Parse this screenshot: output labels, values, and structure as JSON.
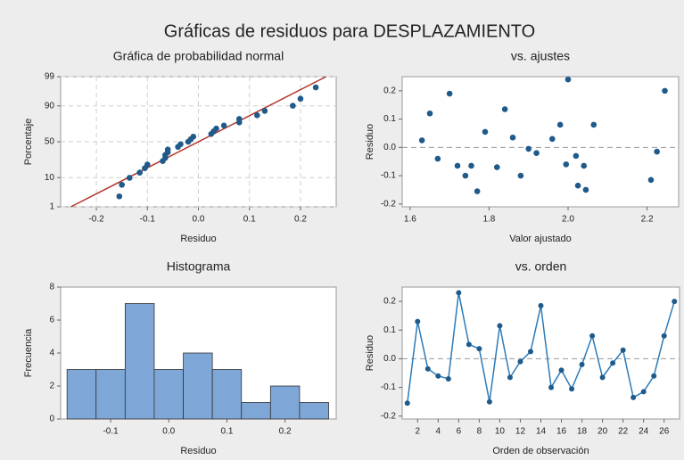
{
  "title": "Gráficas de residuos para DESPLAZAMIENTO",
  "chart_data": [
    {
      "type": "probability",
      "title": "Gráfica de probabilidad normal",
      "xlabel": "Residuo",
      "ylabel": "Porcentaje",
      "x": [
        -0.155,
        -0.15,
        -0.135,
        -0.115,
        -0.105,
        -0.1,
        -0.07,
        -0.065,
        -0.065,
        -0.06,
        -0.06,
        -0.04,
        -0.035,
        -0.02,
        -0.015,
        -0.01,
        0.025,
        0.03,
        0.035,
        0.05,
        0.08,
        0.08,
        0.115,
        0.13,
        0.185,
        0.2,
        0.23
      ],
      "values": [
        2.55,
        6.2,
        9.85,
        13.5,
        17.2,
        20.8,
        24.5,
        28.1,
        31.8,
        35.4,
        39.1,
        42.7,
        46.4,
        50,
        53.6,
        57.3,
        60.9,
        64.6,
        68.2,
        71.9,
        75.5,
        79.2,
        82.8,
        86.5,
        90.1,
        93.8,
        97.4
      ],
      "color": "#1f5a8a",
      "fit_line": {
        "x": [
          -0.25,
          0.25
        ],
        "y": [
          1,
          99
        ],
        "color": "#b0362b"
      },
      "xlim": [
        -0.27,
        0.27
      ],
      "xticks": [
        -0.2,
        -0.1,
        {
          "value": 0,
          "label": "0.0"
        },
        0.1,
        0.2
      ],
      "ylim": [
        1,
        99
      ],
      "yticks": [
        1,
        10,
        50,
        90,
        99
      ],
      "grid": true
    },
    {
      "type": "scatter",
      "title": "vs. ajustes",
      "xlabel": "Valor ajustado",
      "ylabel": "Residuo",
      "x": [
        1.63,
        1.65,
        1.67,
        1.7,
        1.72,
        1.74,
        1.755,
        1.77,
        1.79,
        1.82,
        1.84,
        1.86,
        1.88,
        1.9,
        1.92,
        1.96,
        1.98,
        1.995,
        2.0,
        2.02,
        2.025,
        2.04,
        2.045,
        2.065,
        2.21,
        2.225,
        2.245
      ],
      "values": [
        0.025,
        0.12,
        -0.04,
        0.19,
        -0.065,
        -0.1,
        -0.065,
        -0.155,
        0.055,
        -0.07,
        0.135,
        0.035,
        -0.1,
        -0.005,
        -0.02,
        0.03,
        0.08,
        -0.06,
        0.24,
        -0.03,
        -0.135,
        -0.065,
        -0.15,
        0.08,
        -0.115,
        -0.015,
        0.2
      ],
      "color": "#1f5a8a",
      "reference_line": 0,
      "xlim": [
        1.58,
        2.28
      ],
      "xticks": [
        1.6,
        1.8,
        {
          "value": 2,
          "label": "2.0"
        },
        2.2
      ],
      "ylim": [
        -0.21,
        0.25
      ],
      "yticks": [
        -0.2,
        -0.1,
        {
          "value": 0,
          "label": "0.0"
        },
        0.1,
        0.2
      ]
    },
    {
      "type": "histogram",
      "title": "Histograma",
      "xlabel": "Residuo",
      "ylabel": "Frecuencia",
      "bins": [
        -0.175,
        -0.125,
        -0.075,
        -0.025,
        0.025,
        0.075,
        0.125,
        0.175,
        0.225,
        0.275
      ],
      "values": [
        3,
        3,
        7,
        3,
        4,
        3,
        1,
        2,
        1
      ],
      "color": "#7ea7d8",
      "xlim": [
        -0.186,
        0.288
      ],
      "xticks": [
        -0.1,
        {
          "value": 0,
          "label": "0.0"
        },
        0.1,
        0.2
      ],
      "ylim": [
        0,
        8
      ],
      "yticks": [
        0,
        2,
        4,
        6,
        8
      ]
    },
    {
      "type": "line",
      "title": "vs. orden",
      "xlabel": "Orden de observación",
      "ylabel": "Residuo",
      "x": [
        1,
        2,
        3,
        4,
        5,
        6,
        7,
        8,
        9,
        10,
        11,
        12,
        13,
        14,
        15,
        16,
        17,
        18,
        19,
        20,
        21,
        22,
        23,
        24,
        25,
        26,
        27
      ],
      "values": [
        -0.155,
        0.13,
        -0.035,
        -0.06,
        -0.07,
        0.23,
        0.05,
        0.035,
        -0.15,
        0.115,
        -0.065,
        -0.01,
        0.025,
        0.185,
        -0.1,
        -0.04,
        -0.105,
        -0.02,
        0.08,
        -0.065,
        -0.015,
        0.03,
        -0.135,
        -0.115,
        -0.06,
        0.08,
        0.2
      ],
      "color": "#2b7bb9",
      "reference_line": 0,
      "xlim": [
        0.5,
        27.5
      ],
      "xticks": [
        2,
        4,
        6,
        8,
        10,
        12,
        14,
        16,
        18,
        20,
        22,
        24,
        26
      ],
      "ylim": [
        -0.21,
        0.25
      ],
      "yticks": [
        -0.2,
        -0.1,
        {
          "value": 0,
          "label": "0.0"
        },
        0.1,
        0.2
      ]
    }
  ]
}
